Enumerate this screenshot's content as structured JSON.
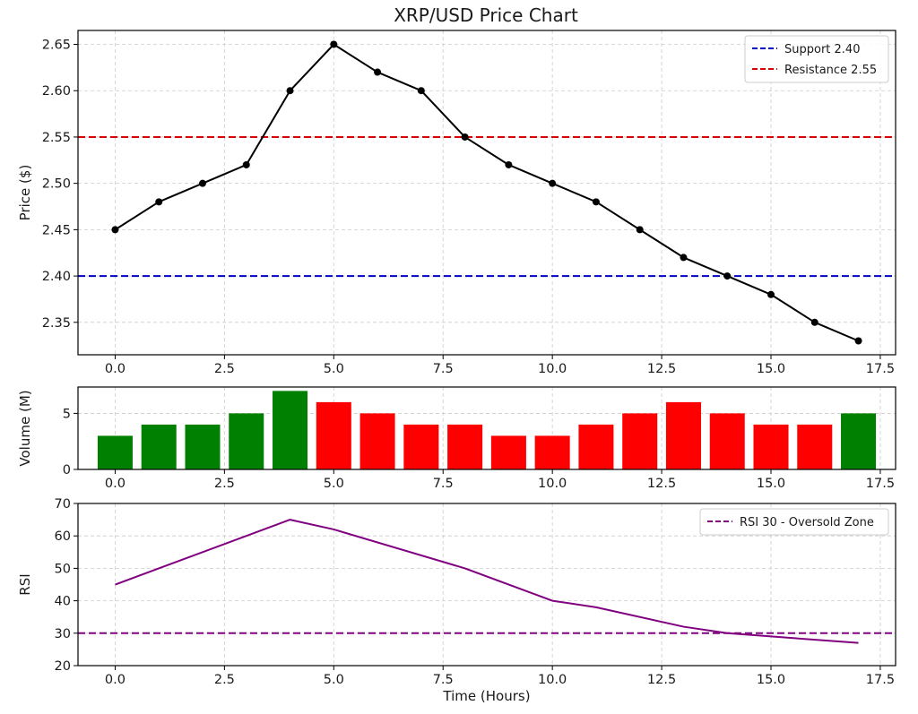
{
  "chart_data": [
    {
      "type": "line",
      "title": "XRP/USD Price Chart",
      "xlabel": "",
      "ylabel": "Price ($)",
      "xlim": [
        -0.85,
        17.85
      ],
      "ylim": [
        2.315,
        2.665
      ],
      "xticks": [
        0.0,
        2.5,
        5.0,
        7.5,
        10.0,
        12.5,
        15.0,
        17.5
      ],
      "xtick_labels": [
        "0.0",
        "2.5",
        "5.0",
        "7.5",
        "10.0",
        "12.5",
        "15.0",
        "17.5"
      ],
      "yticks": [
        2.35,
        2.4,
        2.45,
        2.5,
        2.55,
        2.6,
        2.65
      ],
      "ytick_labels": [
        "2.35",
        "2.40",
        "2.45",
        "2.50",
        "2.55",
        "2.60",
        "2.65"
      ],
      "grid": true,
      "series": [
        {
          "color": "#000000",
          "marker": "circle",
          "x": [
            0,
            1,
            2,
            3,
            4,
            5,
            6,
            7,
            8,
            9,
            10,
            11,
            12,
            13,
            14,
            15,
            16,
            17
          ],
          "y": [
            2.45,
            2.48,
            2.5,
            2.52,
            2.6,
            2.65,
            2.62,
            2.6,
            2.55,
            2.52,
            2.5,
            2.48,
            2.45,
            2.42,
            2.4,
            2.38,
            2.35,
            2.33
          ]
        }
      ],
      "hlines": [
        {
          "name": "Support 2.40",
          "y": 2.4,
          "color": "#0000cc",
          "style": "dashed"
        },
        {
          "name": "Resistance 2.55",
          "y": 2.55,
          "color": "#dd0000",
          "style": "dashed"
        }
      ],
      "legend_position": "top-right"
    },
    {
      "type": "bar",
      "title": "",
      "xlabel": "",
      "ylabel": "Volume (M)",
      "xlim": [
        -0.85,
        17.85
      ],
      "ylim": [
        0,
        7.35
      ],
      "xticks": [
        0.0,
        2.5,
        5.0,
        7.5,
        10.0,
        12.5,
        15.0,
        17.5
      ],
      "xtick_labels": [
        "0.0",
        "2.5",
        "5.0",
        "7.5",
        "10.0",
        "12.5",
        "15.0",
        "17.5"
      ],
      "yticks": [
        0,
        5
      ],
      "ytick_labels": [
        "0",
        "5"
      ],
      "grid": true,
      "x": [
        0,
        1,
        2,
        3,
        4,
        5,
        6,
        7,
        8,
        9,
        10,
        11,
        12,
        13,
        14,
        15,
        16,
        17
      ],
      "values": [
        3,
        4,
        4,
        5,
        7,
        6,
        5,
        4,
        4,
        3,
        3,
        4,
        5,
        6,
        5,
        4,
        4,
        5
      ],
      "colors": [
        "green",
        "green",
        "green",
        "green",
        "green",
        "red",
        "red",
        "red",
        "red",
        "red",
        "red",
        "red",
        "red",
        "red",
        "red",
        "red",
        "red",
        "green"
      ],
      "palette": {
        "green": "#008000",
        "red": "#ff0000"
      }
    },
    {
      "type": "line",
      "title": "",
      "xlabel": "Time (Hours)",
      "ylabel": "RSI",
      "xlim": [
        -0.85,
        17.85
      ],
      "ylim": [
        20,
        70
      ],
      "xticks": [
        0.0,
        2.5,
        5.0,
        7.5,
        10.0,
        12.5,
        15.0,
        17.5
      ],
      "xtick_labels": [
        "0.0",
        "2.5",
        "5.0",
        "7.5",
        "10.0",
        "12.5",
        "15.0",
        "17.5"
      ],
      "yticks": [
        20,
        30,
        40,
        50,
        60,
        70
      ],
      "ytick_labels": [
        "20",
        "30",
        "40",
        "50",
        "60",
        "70"
      ],
      "grid": true,
      "series": [
        {
          "color": "#800080",
          "x": [
            0,
            4,
            5,
            8,
            10,
            11,
            13,
            14,
            15,
            17
          ],
          "y": [
            45,
            65,
            62,
            50,
            40,
            38,
            32,
            30,
            29,
            27
          ]
        }
      ],
      "hlines": [
        {
          "name": "RSI 30 - Oversold Zone",
          "y": 30,
          "color": "#800080",
          "style": "dashed"
        }
      ],
      "legend_position": "top-right"
    }
  ]
}
